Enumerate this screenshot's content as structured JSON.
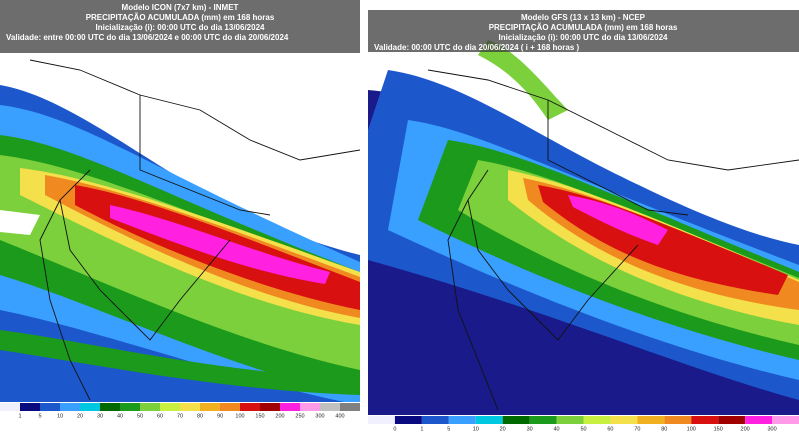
{
  "left_map": {
    "header": [
      "Modelo ICON (7x7 km) - INMET",
      "PRECIPITAÇÃO ACUMULADA (mm) em 168 horas",
      "Inicialização (i): 00:00 UTC do dia 13/06/2024",
      "Validade: entre 00:00 UTC do dia 13/06/2024 e 00:00 UTC do dia 20/06/2024"
    ],
    "colorbar_labels": [
      "1",
      "5",
      "10",
      "20",
      "30",
      "40",
      "50",
      "60",
      "70",
      "80",
      "90",
      "100",
      "150",
      "200",
      "250",
      "300",
      "400"
    ]
  },
  "right_map": {
    "header": [
      "Modelo GFS (13 x 13 km) - NCEP",
      "PRECIPITAÇÃO ACUMULADA (mm) em 168 horas",
      "Inicialização (i): 00:00 UTC do dia 13/06/2024",
      "Validade: 00:00 UTC do dia 20/06/2024 ( i + 168 horas )"
    ],
    "colorbar_labels": [
      "0",
      "1",
      "5",
      "10",
      "20",
      "30",
      "40",
      "50",
      "60",
      "70",
      "80",
      "100",
      "150",
      "200",
      "300"
    ]
  }
}
